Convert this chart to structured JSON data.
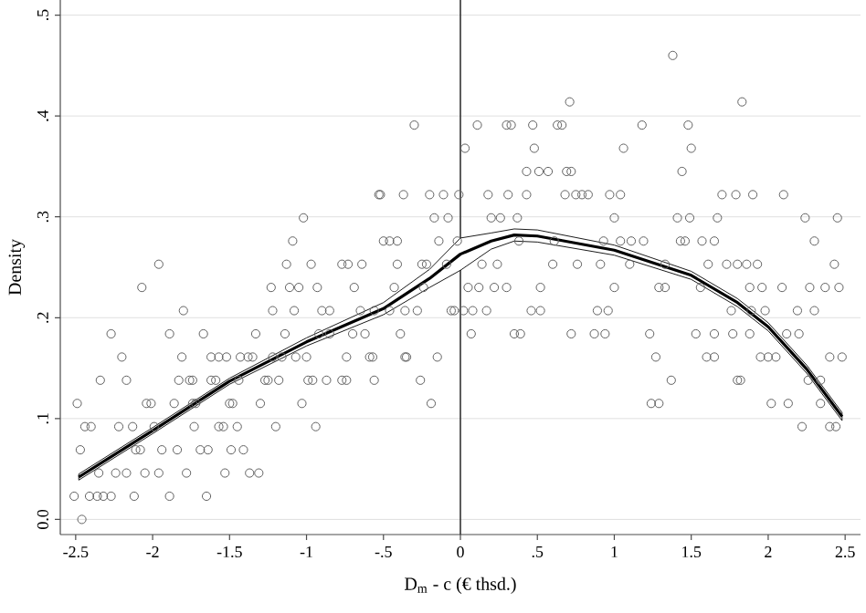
{
  "chart_data": {
    "type": "scatter",
    "xlabel": "D$_{m}$ - c (€ thsd.)",
    "ylabel": "Density",
    "xlim": [
      -2.6,
      2.6
    ],
    "ylim": [
      -0.015,
      0.515
    ],
    "xticks": [
      -2.5,
      -2,
      -1.5,
      -1,
      {
        "value": -0.5,
        "label": "-.5"
      },
      0,
      {
        "value": 0.5,
        "label": ".5"
      },
      1,
      1.5,
      2,
      2.5
    ],
    "yticks": [
      {
        "value": 0,
        "label": "0.0"
      },
      {
        "value": 0.1,
        "label": ".1"
      },
      {
        "value": 0.2,
        "label": ".2"
      },
      {
        "value": 0.3,
        "label": ".3"
      },
      {
        "value": 0.4,
        "label": ".4"
      },
      {
        "value": 0.5,
        "label": ".5"
      }
    ],
    "grid": "y",
    "ref_lines": [
      {
        "axis": "x",
        "value": 0,
        "color": "#333333"
      }
    ],
    "series": [
      {
        "marker": "circle",
        "color": "#606060",
        "x": [
          -2.46,
          -2.51,
          -2.41,
          -2.36,
          -2.32,
          -2.27,
          -2.12,
          -1.89,
          -1.65,
          -2.35,
          -2.24,
          -2.17,
          -2.05,
          -1.96,
          -1.78,
          -1.53,
          -1.37,
          -1.31,
          -2.47,
          -2.11,
          -2.08,
          -1.94,
          -1.84,
          -1.69,
          -1.64,
          -1.49,
          -1.41,
          -2.44,
          -2.4,
          -2.22,
          -2.13,
          -1.99,
          -1.73,
          -1.57,
          -1.54,
          -1.45,
          -1.2,
          -0.94,
          2.22,
          2.4,
          2.44,
          -2.49,
          -2.04,
          -2.01,
          -1.86,
          -1.74,
          -1.72,
          -1.5,
          -1.48,
          -1.3,
          -1.03,
          -0.19,
          1.24,
          1.29,
          2.02,
          2.13,
          2.34,
          -2.34,
          -2.17,
          -1.83,
          -1.76,
          -1.74,
          -1.62,
          -1.59,
          -1.44,
          -1.27,
          -1.25,
          -1.18,
          -0.99,
          -0.96,
          -0.87,
          -0.77,
          -0.74,
          -0.56,
          -0.26,
          1.37,
          1.8,
          1.82,
          2.26,
          2.34,
          -2.2,
          -1.81,
          -1.62,
          -1.57,
          -1.52,
          -1.43,
          -1.38,
          -1.35,
          -1.22,
          -1.16,
          -1.07,
          -1.0,
          -0.74,
          -0.59,
          -0.57,
          -0.36,
          -0.35,
          -0.15,
          1.27,
          1.6,
          1.65,
          1.95,
          2.0,
          2.05,
          2.4,
          2.48,
          -2.27,
          -1.89,
          -1.67,
          -1.33,
          -1.14,
          -0.92,
          -0.85,
          -0.7,
          -0.62,
          -0.39,
          0.07,
          0.35,
          0.39,
          0.72,
          0.87,
          0.94,
          1.23,
          1.53,
          1.65,
          1.77,
          1.88,
          2.12,
          2.2,
          -1.8,
          -1.22,
          -1.08,
          -0.9,
          -0.85,
          -0.65,
          -0.56,
          -0.46,
          -0.36,
          -0.28,
          -0.06,
          -0.04,
          0.02,
          0.08,
          0.17,
          0.46,
          0.52,
          0.89,
          0.96,
          1.76,
          1.89,
          1.98,
          2.19,
          2.3,
          -2.07,
          -1.23,
          -1.11,
          -1.05,
          -0.93,
          -0.69,
          -0.43,
          -0.24,
          0.05,
          0.12,
          0.22,
          0.3,
          0.52,
          1.0,
          1.29,
          1.33,
          1.56,
          1.88,
          1.96,
          2.09,
          2.27,
          2.37,
          2.46,
          -1.96,
          -1.13,
          -0.97,
          -0.77,
          -0.73,
          -0.64,
          -0.41,
          -0.25,
          -0.22,
          -0.09,
          0.14,
          0.24,
          0.6,
          0.76,
          0.91,
          1.1,
          1.33,
          1.61,
          1.73,
          1.8,
          1.86,
          1.93,
          2.43,
          -1.09,
          -0.5,
          -0.46,
          -0.41,
          -0.14,
          -0.02,
          0.38,
          0.61,
          0.93,
          1.04,
          1.11,
          1.19,
          1.43,
          1.46,
          1.57,
          1.65,
          2.3,
          -1.02,
          -0.17,
          -0.08,
          0.2,
          0.26,
          0.37,
          1.0,
          1.41,
          1.49,
          1.67,
          2.24,
          2.45,
          -0.53,
          -0.52,
          -0.37,
          -0.2,
          -0.11,
          -0.01,
          0.18,
          0.31,
          0.43,
          0.68,
          0.75,
          0.79,
          0.83,
          0.97,
          1.04,
          1.7,
          1.79,
          1.9,
          2.1,
          0.43,
          0.51,
          0.57,
          0.69,
          0.72,
          1.44,
          0.03,
          0.48,
          1.06,
          1.5,
          -0.3,
          0.11,
          0.3,
          0.33,
          0.47,
          0.63,
          0.66,
          1.18,
          1.48,
          0.71,
          1.83,
          1.38
        ],
        "values": [
          0,
          0.023,
          0.023,
          0.023,
          0.023,
          0.023,
          0.023,
          0.023,
          0.023,
          0.046,
          0.046,
          0.046,
          0.046,
          0.046,
          0.046,
          0.046,
          0.046,
          0.046,
          0.069,
          0.069,
          0.069,
          0.069,
          0.069,
          0.069,
          0.069,
          0.069,
          0.069,
          0.092,
          0.092,
          0.092,
          0.092,
          0.092,
          0.092,
          0.092,
          0.092,
          0.092,
          0.092,
          0.092,
          0.092,
          0.092,
          0.092,
          0.115,
          0.115,
          0.115,
          0.115,
          0.115,
          0.115,
          0.115,
          0.115,
          0.115,
          0.115,
          0.115,
          0.115,
          0.115,
          0.115,
          0.115,
          0.115,
          0.138,
          0.138,
          0.138,
          0.138,
          0.138,
          0.138,
          0.138,
          0.138,
          0.138,
          0.138,
          0.138,
          0.138,
          0.138,
          0.138,
          0.138,
          0.138,
          0.138,
          0.138,
          0.138,
          0.138,
          0.138,
          0.138,
          0.138,
          0.161,
          0.161,
          0.161,
          0.161,
          0.161,
          0.161,
          0.161,
          0.161,
          0.161,
          0.161,
          0.161,
          0.161,
          0.161,
          0.161,
          0.161,
          0.161,
          0.161,
          0.161,
          0.161,
          0.161,
          0.161,
          0.161,
          0.161,
          0.161,
          0.161,
          0.161,
          0.184,
          0.184,
          0.184,
          0.184,
          0.184,
          0.184,
          0.184,
          0.184,
          0.184,
          0.184,
          0.184,
          0.184,
          0.184,
          0.184,
          0.184,
          0.184,
          0.184,
          0.184,
          0.184,
          0.184,
          0.184,
          0.184,
          0.184,
          0.207,
          0.207,
          0.207,
          0.207,
          0.207,
          0.207,
          0.207,
          0.207,
          0.207,
          0.207,
          0.207,
          0.207,
          0.207,
          0.207,
          0.207,
          0.207,
          0.207,
          0.207,
          0.207,
          0.207,
          0.207,
          0.207,
          0.207,
          0.207,
          0.23,
          0.23,
          0.23,
          0.23,
          0.23,
          0.23,
          0.23,
          0.23,
          0.23,
          0.23,
          0.23,
          0.23,
          0.23,
          0.23,
          0.23,
          0.23,
          0.23,
          0.23,
          0.23,
          0.23,
          0.23,
          0.23,
          0.23,
          0.253,
          0.253,
          0.253,
          0.253,
          0.253,
          0.253,
          0.253,
          0.253,
          0.253,
          0.253,
          0.253,
          0.253,
          0.253,
          0.253,
          0.253,
          0.253,
          0.253,
          0.253,
          0.253,
          0.253,
          0.253,
          0.253,
          0.253,
          0.276,
          0.276,
          0.276,
          0.276,
          0.276,
          0.276,
          0.276,
          0.276,
          0.276,
          0.276,
          0.276,
          0.276,
          0.276,
          0.276,
          0.276,
          0.276,
          0.276,
          0.299,
          0.299,
          0.299,
          0.299,
          0.299,
          0.299,
          0.299,
          0.299,
          0.299,
          0.299,
          0.299,
          0.299,
          0.322,
          0.322,
          0.322,
          0.322,
          0.322,
          0.322,
          0.322,
          0.322,
          0.322,
          0.322,
          0.322,
          0.322,
          0.322,
          0.322,
          0.322,
          0.322,
          0.322,
          0.322,
          0.322,
          0.345,
          0.345,
          0.345,
          0.345,
          0.345,
          0.345,
          0.368,
          0.368,
          0.368,
          0.368,
          0.391,
          0.391,
          0.391,
          0.391,
          0.391,
          0.391,
          0.391,
          0.391,
          0.391,
          0.414,
          0.414,
          0.46
        ]
      },
      {
        "type": "line",
        "marker": "none",
        "line_style": "solid",
        "color": "#000000",
        "x": [
          -2.48,
          -2,
          -1.5,
          -1,
          -0.5,
          -0.2,
          0,
          0.2,
          0.35,
          0.5,
          1,
          1.5,
          1.8,
          2,
          2.25,
          2.48
        ],
        "values": [
          0.042,
          0.088,
          0.137,
          0.176,
          0.209,
          0.239,
          0.263,
          0.276,
          0.282,
          0.281,
          0.267,
          0.242,
          0.215,
          0.191,
          0.149,
          0.102
        ],
        "lower": [
          0.039,
          0.085,
          0.134,
          0.172,
          0.203,
          0.23,
          0.247,
          0.268,
          0.276,
          0.275,
          0.262,
          0.238,
          0.211,
          0.187,
          0.145,
          0.098
        ],
        "upper": [
          0.045,
          0.091,
          0.14,
          0.18,
          0.215,
          0.248,
          0.279,
          0.284,
          0.288,
          0.287,
          0.272,
          0.246,
          0.219,
          0.195,
          0.153,
          0.106
        ]
      }
    ]
  }
}
